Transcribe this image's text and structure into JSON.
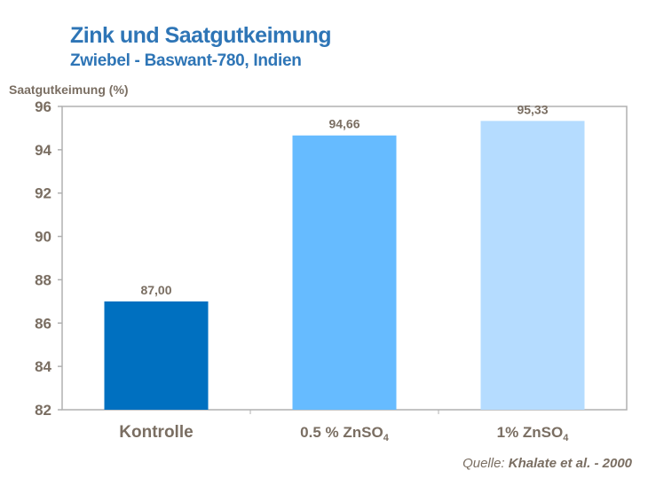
{
  "chart_data": {
    "type": "bar",
    "title": "Zink und Saatgutkeimung",
    "subtitle": "Zwiebel - Baswant-780, Indien",
    "ylabel": "Saatgutkeimung (%)",
    "xlabel": "",
    "categories": [
      {
        "main": "Kontrolle",
        "sub": ""
      },
      {
        "main": "0.5 % ZnSO",
        "sub": "4"
      },
      {
        "main": "1% ZnSO",
        "sub": "4"
      }
    ],
    "values": [
      87.0,
      94.66,
      95.33
    ],
    "value_labels": [
      "87,00",
      "94,66",
      "95,33"
    ],
    "bar_colors": [
      "#0070c0",
      "#66bbff",
      "#b5dcff"
    ],
    "ylim": [
      82,
      96
    ],
    "yticks": [
      82,
      84,
      86,
      88,
      90,
      92,
      94,
      96
    ],
    "grid": false,
    "source_label": "Quelle:",
    "source_text": "Khalate et al. -  2000",
    "colors": {
      "title": "#2e75b6",
      "axis_text": "#7a6e62",
      "frame": "#b0b0b0"
    }
  }
}
